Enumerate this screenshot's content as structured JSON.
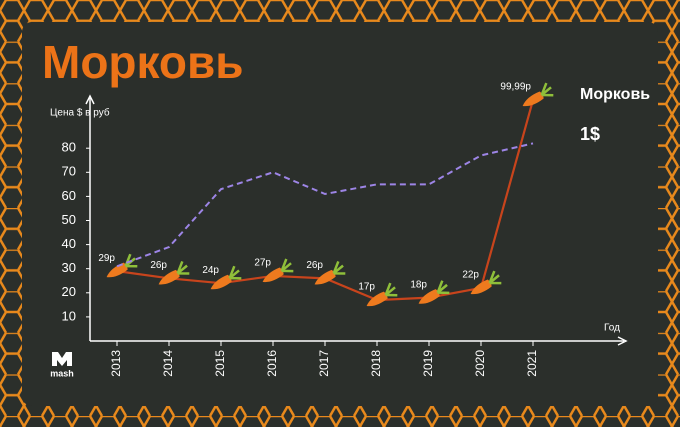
{
  "brand": "mash",
  "chart_data": {
    "type": "line",
    "title": "Морковь",
    "y_label": "Цена $ в руб",
    "x_label": "Год",
    "categories": [
      "2013",
      "2014",
      "2015",
      "2016",
      "2017",
      "2018",
      "2019",
      "2020",
      "2021"
    ],
    "series": [
      {
        "name": "Морковь",
        "color": "#c8441c",
        "dash": false,
        "values": [
          29,
          26,
          24,
          27,
          26,
          17,
          18,
          22,
          99.99
        ],
        "value_labels": [
          "29р",
          "26р",
          "24р",
          "27р",
          "26р",
          "17р",
          "18р",
          "22р",
          "99,99р"
        ]
      },
      {
        "name": "1$",
        "color": "#9d85e6",
        "dash": true,
        "values": [
          31,
          39,
          63,
          70,
          61,
          65,
          65,
          77,
          82
        ]
      }
    ],
    "ylim": [
      0,
      100
    ],
    "yticks": [
      10,
      20,
      30,
      40,
      50,
      60,
      70,
      80
    ]
  }
}
